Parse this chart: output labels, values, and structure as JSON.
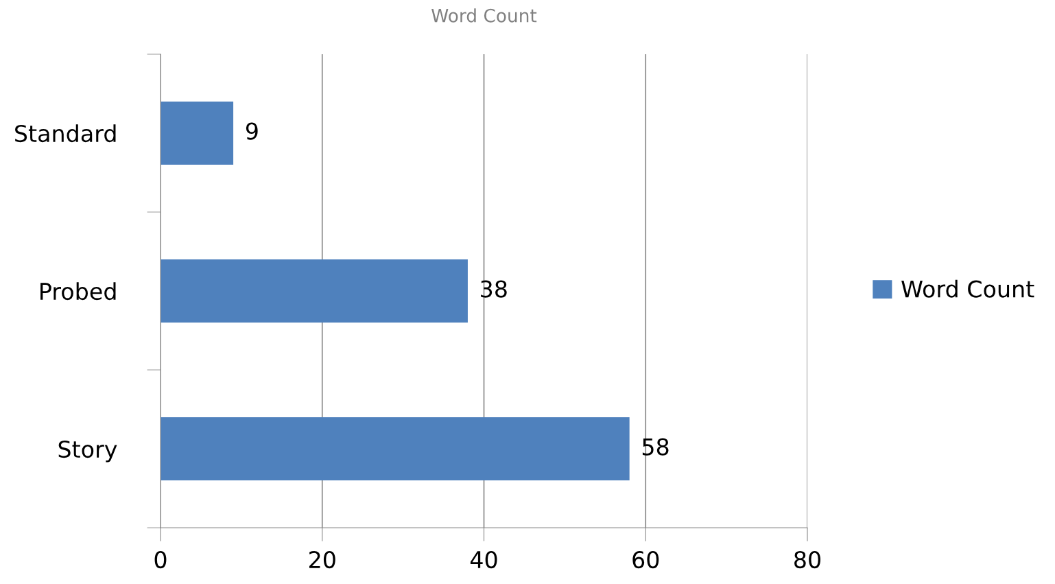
{
  "chart_data": {
    "type": "bar",
    "orientation": "horizontal",
    "title": "Word Count",
    "categories": [
      "Standard",
      "Probed",
      "Story"
    ],
    "series": [
      {
        "name": "Word Count",
        "color": "#4f81bd",
        "values": [
          9,
          38,
          58
        ]
      }
    ],
    "xlim": [
      0,
      80
    ],
    "xticks": [
      0,
      20,
      40,
      60,
      80
    ],
    "grid": "x",
    "legend": "right",
    "data_labels": true
  }
}
